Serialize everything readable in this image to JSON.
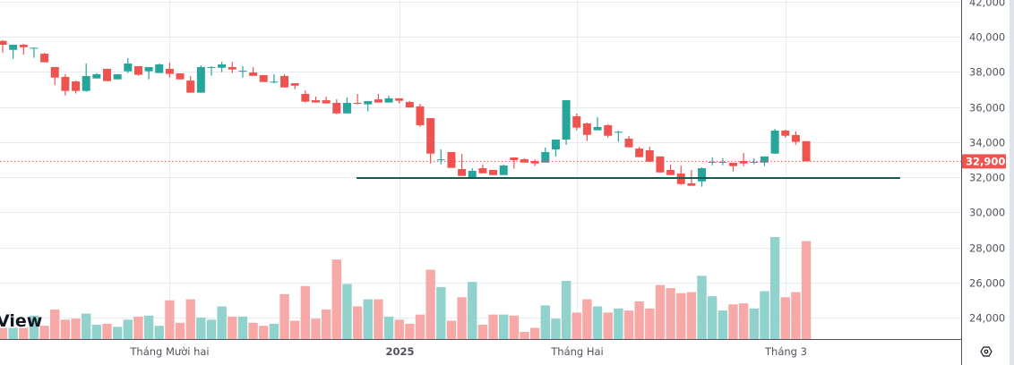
{
  "chart_data": {
    "type": "candlestick",
    "colors": {
      "up": "#26a69a",
      "down": "#ef5350",
      "volume_up": "#92d2cc",
      "volume_down": "#f7a9a7",
      "support_line": "#0b5e4f",
      "grid": "#e6ecf2"
    },
    "y_axis": {
      "ylim": [
        23000,
        42000
      ],
      "ticks": [
        "42,000",
        "40,000",
        "38,000",
        "36,000",
        "34,000",
        "32,000",
        "30,000",
        "28,000",
        "26,000",
        "24,000"
      ],
      "tick_values": [
        42000,
        40000,
        38000,
        36000,
        34000,
        32000,
        30000,
        28000,
        26000,
        24000
      ],
      "grid": true
    },
    "x_axis": {
      "labels": [
        {
          "text": "Tháng Mười hai",
          "at_candle": 16,
          "bold": false
        },
        {
          "text": "2025",
          "at_candle": 38,
          "bold": true
        },
        {
          "text": "Tháng Hai",
          "at_candle": 55,
          "bold": false
        },
        {
          "text": "Tháng 3",
          "at_candle": 75,
          "bold": false
        }
      ]
    },
    "last_price": {
      "value": 32900,
      "label": "32,900"
    },
    "support_line": {
      "price": 31950,
      "from_candle": 34,
      "to_candle_extend": 9
    },
    "ohlc": [
      [
        39760,
        39540,
        39800,
        39080
      ],
      [
        39250,
        39540,
        39540,
        38740
      ],
      [
        39540,
        39400,
        39590,
        38980
      ],
      [
        39370,
        39370,
        39370,
        38800
      ],
      [
        39030,
        38540,
        39080,
        38540
      ],
      [
        38270,
        37670,
        38270,
        37250
      ],
      [
        37710,
        36910,
        37860,
        36650
      ],
      [
        37450,
        36910,
        37500,
        36760
      ],
      [
        36910,
        37760,
        38470,
        36860
      ],
      [
        37620,
        37860,
        37930,
        37620
      ],
      [
        38170,
        37470,
        38170,
        37470
      ],
      [
        37570,
        37860,
        37860,
        37570
      ],
      [
        38030,
        38470,
        38780,
        37930
      ],
      [
        38320,
        37830,
        38320,
        37780
      ],
      [
        38030,
        38270,
        38270,
        37570
      ],
      [
        37930,
        38420,
        38470,
        37930
      ],
      [
        38170,
        37880,
        38520,
        37670
      ],
      [
        37910,
        37570,
        37910,
        37570
      ],
      [
        37500,
        36810,
        37760,
        36810
      ],
      [
        36810,
        38270,
        38370,
        36810
      ],
      [
        38270,
        38270,
        38320,
        37780
      ],
      [
        38230,
        38420,
        38570,
        37980
      ],
      [
        38270,
        38130,
        38570,
        37930
      ],
      [
        38060,
        38060,
        38320,
        37670
      ],
      [
        37960,
        37770,
        38270,
        37770
      ],
      [
        37810,
        37420,
        37810,
        37420
      ],
      [
        37440,
        37440,
        37860,
        37340
      ],
      [
        37760,
        37110,
        37860,
        37110
      ],
      [
        37350,
        37210,
        37350,
        37010
      ],
      [
        36740,
        36300,
        36940,
        36250
      ],
      [
        36380,
        36250,
        36590,
        36250
      ],
      [
        36380,
        36200,
        36590,
        36200
      ],
      [
        36230,
        35630,
        36430,
        35580
      ],
      [
        35630,
        36230,
        36540,
        35630
      ],
      [
        36230,
        36200,
        36740,
        36150
      ],
      [
        36150,
        36330,
        36330,
        35740
      ],
      [
        36430,
        36250,
        36740,
        36250
      ],
      [
        36250,
        36490,
        36640,
        36250
      ],
      [
        36490,
        36350,
        36490,
        36200
      ],
      [
        36280,
        35970,
        36330,
        35970
      ],
      [
        36030,
        34960,
        36180,
        34860
      ],
      [
        35360,
        33340,
        35360,
        32780
      ],
      [
        33010,
        33010,
        33580,
        32730
      ],
      [
        33430,
        32530,
        33430,
        32530
      ],
      [
        32460,
        32070,
        33330,
        32070
      ],
      [
        31970,
        32360,
        32510,
        31970
      ],
      [
        32510,
        32220,
        32730,
        32220
      ],
      [
        32410,
        32120,
        32410,
        32120
      ],
      [
        32120,
        32660,
        32720,
        32120
      ],
      [
        33120,
        32970,
        33120,
        32480
      ],
      [
        33020,
        32830,
        33070,
        32830
      ],
      [
        32920,
        32780,
        33020,
        32630
      ],
      [
        32830,
        33430,
        33690,
        32830
      ],
      [
        33580,
        34140,
        34140,
        33180
      ],
      [
        34140,
        36380,
        36380,
        33850
      ],
      [
        35470,
        34820,
        35620,
        34670
      ],
      [
        35060,
        34410,
        35110,
        34060
      ],
      [
        34670,
        34860,
        35420,
        34670
      ],
      [
        34960,
        34360,
        35010,
        34260
      ],
      [
        34590,
        34590,
        34640,
        34010
      ],
      [
        34190,
        33700,
        34350,
        33700
      ],
      [
        33630,
        33140,
        33730,
        33140
      ],
      [
        33530,
        32880,
        33730,
        32880
      ],
      [
        33180,
        32270,
        33180,
        32270
      ],
      [
        32410,
        32120,
        32720,
        32120
      ],
      [
        32210,
        31610,
        32660,
        31560
      ],
      [
        31650,
        31510,
        32410,
        31510
      ],
      [
        31760,
        32510,
        32560,
        31460
      ],
      [
        32870,
        32870,
        33120,
        32680
      ],
      [
        32870,
        32870,
        33070,
        32680
      ],
      [
        32820,
        32630,
        32820,
        32320
      ],
      [
        32920,
        32780,
        33380,
        32630
      ],
      [
        32870,
        32870,
        33070,
        32730
      ],
      [
        32830,
        33180,
        33180,
        32630
      ],
      [
        33340,
        34650,
        34750,
        33340
      ],
      [
        34650,
        34360,
        34700,
        34260
      ],
      [
        34400,
        34010,
        34600,
        33850
      ],
      [
        34050,
        32900,
        34050,
        32900
      ]
    ],
    "volume_relative_pct": [
      11,
      11,
      11,
      23,
      13,
      29,
      19,
      20,
      25,
      14,
      15,
      12,
      19,
      22,
      23,
      13,
      38,
      16,
      39,
      21,
      19,
      32,
      22,
      22,
      16,
      13,
      15,
      44,
      18,
      52,
      20,
      29,
      78,
      54,
      32,
      39,
      39,
      22,
      19,
      15,
      24,
      68,
      51,
      18,
      41,
      56,
      14,
      24,
      24,
      23,
      7,
      11,
      33,
      20,
      57,
      26,
      39,
      32,
      26,
      30,
      28,
      37,
      30,
      53,
      50,
      45,
      46,
      62,
      42,
      28,
      34,
      35,
      30,
      47,
      100,
      41,
      46,
      96
    ]
  },
  "watermark": {
    "text": "View"
  },
  "icons": {
    "settings": "settings-hexagon-icon"
  }
}
